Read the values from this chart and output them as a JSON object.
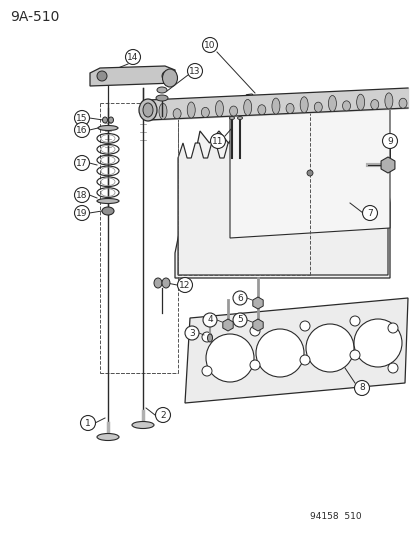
{
  "title_label": "9A-510",
  "bottom_label": "94158  510",
  "bg_color": "#ffffff",
  "line_color": "#2a2a2a",
  "fig_width": 4.14,
  "fig_height": 5.33,
  "dpi": 100
}
